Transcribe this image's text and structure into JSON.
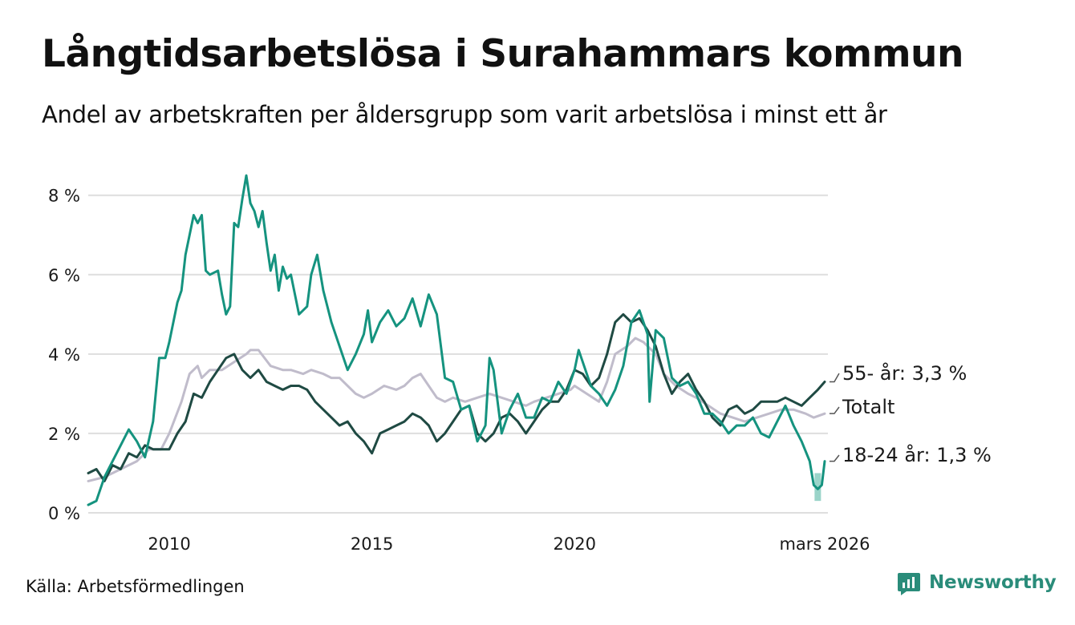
{
  "title": "Långtidsarbetslösa i Surahammars kommun",
  "subtitle": "Andel av arbetskraften per åldersgrupp som varit arbetslösa i minst ett år",
  "source": "Källa: Arbetsförmedlingen",
  "brand": "Newsworthy",
  "colors": {
    "youth": "#15937f",
    "older": "#1f4a43",
    "total": "#c0bccb",
    "grid": "#dedede",
    "uncertainty": "#9ad4c9",
    "brand": "#2a8c7a"
  },
  "chart_data": {
    "type": "line",
    "title": "Långtidsarbetslösa i Surahammars kommun",
    "xlim": [
      2008.0,
      2026.25
    ],
    "ylim": [
      0,
      8.6
    ],
    "x_ticks": [
      {
        "value": 2010.0,
        "label": "2010"
      },
      {
        "value": 2015.0,
        "label": "2015"
      },
      {
        "value": 2020.0,
        "label": "2020"
      },
      {
        "value": 2026.17,
        "label": "mars 2026"
      }
    ],
    "y_ticks": [
      {
        "value": 0,
        "label": "0 %"
      },
      {
        "value": 2,
        "label": "2 %"
      },
      {
        "value": 4,
        "label": "4 %"
      },
      {
        "value": 6,
        "label": "6 %"
      },
      {
        "value": 8,
        "label": "8 %"
      }
    ],
    "uncertainty_band": {
      "x": 2026.0,
      "low": 0.3,
      "high": 1.0
    },
    "series": [
      {
        "name": "Totalt",
        "label": "Totalt",
        "key": "total",
        "points": [
          [
            2008.0,
            0.8
          ],
          [
            2008.4,
            0.9
          ],
          [
            2008.8,
            1.1
          ],
          [
            2009.2,
            1.3
          ],
          [
            2009.5,
            1.6
          ],
          [
            2009.8,
            1.6
          ],
          [
            2010.0,
            2.0
          ],
          [
            2010.3,
            2.8
          ],
          [
            2010.5,
            3.5
          ],
          [
            2010.7,
            3.7
          ],
          [
            2010.8,
            3.4
          ],
          [
            2011.0,
            3.6
          ],
          [
            2011.3,
            3.6
          ],
          [
            2011.6,
            3.8
          ],
          [
            2011.9,
            4.0
          ],
          [
            2012.0,
            4.1
          ],
          [
            2012.2,
            4.1
          ],
          [
            2012.5,
            3.7
          ],
          [
            2012.8,
            3.6
          ],
          [
            2013.0,
            3.6
          ],
          [
            2013.3,
            3.5
          ],
          [
            2013.5,
            3.6
          ],
          [
            2013.8,
            3.5
          ],
          [
            2014.0,
            3.4
          ],
          [
            2014.2,
            3.4
          ],
          [
            2014.4,
            3.2
          ],
          [
            2014.6,
            3.0
          ],
          [
            2014.8,
            2.9
          ],
          [
            2015.0,
            3.0
          ],
          [
            2015.3,
            3.2
          ],
          [
            2015.6,
            3.1
          ],
          [
            2015.8,
            3.2
          ],
          [
            2016.0,
            3.4
          ],
          [
            2016.2,
            3.5
          ],
          [
            2016.4,
            3.2
          ],
          [
            2016.6,
            2.9
          ],
          [
            2016.8,
            2.8
          ],
          [
            2017.0,
            2.9
          ],
          [
            2017.3,
            2.8
          ],
          [
            2017.6,
            2.9
          ],
          [
            2017.9,
            3.0
          ],
          [
            2018.2,
            2.9
          ],
          [
            2018.5,
            2.8
          ],
          [
            2018.8,
            2.7
          ],
          [
            2019.0,
            2.8
          ],
          [
            2019.3,
            2.9
          ],
          [
            2019.6,
            3.0
          ],
          [
            2019.9,
            3.1
          ],
          [
            2020.0,
            3.2
          ],
          [
            2020.3,
            3.0
          ],
          [
            2020.6,
            2.8
          ],
          [
            2020.8,
            3.3
          ],
          [
            2021.0,
            4.0
          ],
          [
            2021.3,
            4.2
          ],
          [
            2021.5,
            4.4
          ],
          [
            2021.7,
            4.3
          ],
          [
            2022.0,
            4.0
          ],
          [
            2022.2,
            3.5
          ],
          [
            2022.5,
            3.2
          ],
          [
            2022.8,
            3.0
          ],
          [
            2023.0,
            2.9
          ],
          [
            2023.3,
            2.7
          ],
          [
            2023.6,
            2.5
          ],
          [
            2023.9,
            2.4
          ],
          [
            2024.2,
            2.3
          ],
          [
            2024.5,
            2.4
          ],
          [
            2024.8,
            2.5
          ],
          [
            2025.1,
            2.6
          ],
          [
            2025.4,
            2.6
          ],
          [
            2025.7,
            2.5
          ],
          [
            2025.9,
            2.4
          ],
          [
            2026.17,
            2.5
          ]
        ]
      },
      {
        "name": "55- år",
        "label": "55- år: 3,3 %",
        "key": "older",
        "points": [
          [
            2008.0,
            1.0
          ],
          [
            2008.2,
            1.1
          ],
          [
            2008.4,
            0.8
          ],
          [
            2008.6,
            1.2
          ],
          [
            2008.8,
            1.1
          ],
          [
            2009.0,
            1.5
          ],
          [
            2009.2,
            1.4
          ],
          [
            2009.4,
            1.7
          ],
          [
            2009.6,
            1.6
          ],
          [
            2009.8,
            1.6
          ],
          [
            2010.0,
            1.6
          ],
          [
            2010.2,
            2.0
          ],
          [
            2010.4,
            2.3
          ],
          [
            2010.6,
            3.0
          ],
          [
            2010.8,
            2.9
          ],
          [
            2011.0,
            3.3
          ],
          [
            2011.2,
            3.6
          ],
          [
            2011.4,
            3.9
          ],
          [
            2011.6,
            4.0
          ],
          [
            2011.8,
            3.6
          ],
          [
            2012.0,
            3.4
          ],
          [
            2012.2,
            3.6
          ],
          [
            2012.4,
            3.3
          ],
          [
            2012.6,
            3.2
          ],
          [
            2012.8,
            3.1
          ],
          [
            2013.0,
            3.2
          ],
          [
            2013.2,
            3.2
          ],
          [
            2013.4,
            3.1
          ],
          [
            2013.6,
            2.8
          ],
          [
            2013.8,
            2.6
          ],
          [
            2014.0,
            2.4
          ],
          [
            2014.2,
            2.2
          ],
          [
            2014.4,
            2.3
          ],
          [
            2014.6,
            2.0
          ],
          [
            2014.8,
            1.8
          ],
          [
            2015.0,
            1.5
          ],
          [
            2015.2,
            2.0
          ],
          [
            2015.4,
            2.1
          ],
          [
            2015.6,
            2.2
          ],
          [
            2015.8,
            2.3
          ],
          [
            2016.0,
            2.5
          ],
          [
            2016.2,
            2.4
          ],
          [
            2016.4,
            2.2
          ],
          [
            2016.6,
            1.8
          ],
          [
            2016.8,
            2.0
          ],
          [
            2017.0,
            2.3
          ],
          [
            2017.2,
            2.6
          ],
          [
            2017.4,
            2.7
          ],
          [
            2017.6,
            2.0
          ],
          [
            2017.8,
            1.8
          ],
          [
            2018.0,
            2.0
          ],
          [
            2018.2,
            2.4
          ],
          [
            2018.4,
            2.5
          ],
          [
            2018.6,
            2.3
          ],
          [
            2018.8,
            2.0
          ],
          [
            2019.0,
            2.3
          ],
          [
            2019.2,
            2.6
          ],
          [
            2019.4,
            2.8
          ],
          [
            2019.6,
            2.8
          ],
          [
            2019.8,
            3.1
          ],
          [
            2020.0,
            3.6
          ],
          [
            2020.2,
            3.5
          ],
          [
            2020.4,
            3.2
          ],
          [
            2020.6,
            3.4
          ],
          [
            2020.8,
            4.0
          ],
          [
            2021.0,
            4.8
          ],
          [
            2021.2,
            5.0
          ],
          [
            2021.4,
            4.8
          ],
          [
            2021.6,
            4.9
          ],
          [
            2021.8,
            4.6
          ],
          [
            2022.0,
            4.2
          ],
          [
            2022.2,
            3.5
          ],
          [
            2022.4,
            3.0
          ],
          [
            2022.6,
            3.3
          ],
          [
            2022.8,
            3.5
          ],
          [
            2023.0,
            3.1
          ],
          [
            2023.2,
            2.8
          ],
          [
            2023.4,
            2.4
          ],
          [
            2023.6,
            2.2
          ],
          [
            2023.8,
            2.6
          ],
          [
            2024.0,
            2.7
          ],
          [
            2024.2,
            2.5
          ],
          [
            2024.4,
            2.6
          ],
          [
            2024.6,
            2.8
          ],
          [
            2024.8,
            2.8
          ],
          [
            2025.0,
            2.8
          ],
          [
            2025.2,
            2.9
          ],
          [
            2025.4,
            2.8
          ],
          [
            2025.6,
            2.7
          ],
          [
            2025.8,
            2.9
          ],
          [
            2026.0,
            3.1
          ],
          [
            2026.17,
            3.3
          ]
        ]
      },
      {
        "name": "18-24 år",
        "label": "18-24 år: 1,3 %",
        "key": "youth",
        "points": [
          [
            2008.0,
            0.2
          ],
          [
            2008.2,
            0.3
          ],
          [
            2008.4,
            0.9
          ],
          [
            2008.6,
            1.3
          ],
          [
            2008.8,
            1.7
          ],
          [
            2009.0,
            2.1
          ],
          [
            2009.2,
            1.8
          ],
          [
            2009.4,
            1.4
          ],
          [
            2009.6,
            2.3
          ],
          [
            2009.75,
            3.9
          ],
          [
            2009.9,
            3.9
          ],
          [
            2010.0,
            4.3
          ],
          [
            2010.2,
            5.3
          ],
          [
            2010.3,
            5.6
          ],
          [
            2010.4,
            6.5
          ],
          [
            2010.5,
            7.0
          ],
          [
            2010.6,
            7.5
          ],
          [
            2010.7,
            7.3
          ],
          [
            2010.8,
            7.5
          ],
          [
            2010.9,
            6.1
          ],
          [
            2011.0,
            6.0
          ],
          [
            2011.2,
            6.1
          ],
          [
            2011.3,
            5.5
          ],
          [
            2011.4,
            5.0
          ],
          [
            2011.5,
            5.2
          ],
          [
            2011.6,
            7.3
          ],
          [
            2011.7,
            7.2
          ],
          [
            2011.8,
            7.9
          ],
          [
            2011.9,
            8.5
          ],
          [
            2012.0,
            7.8
          ],
          [
            2012.1,
            7.6
          ],
          [
            2012.2,
            7.2
          ],
          [
            2012.3,
            7.6
          ],
          [
            2012.4,
            6.8
          ],
          [
            2012.5,
            6.1
          ],
          [
            2012.6,
            6.5
          ],
          [
            2012.7,
            5.6
          ],
          [
            2012.8,
            6.2
          ],
          [
            2012.9,
            5.9
          ],
          [
            2013.0,
            6.0
          ],
          [
            2013.2,
            5.0
          ],
          [
            2013.4,
            5.2
          ],
          [
            2013.5,
            6.0
          ],
          [
            2013.65,
            6.5
          ],
          [
            2013.8,
            5.6
          ],
          [
            2014.0,
            4.8
          ],
          [
            2014.2,
            4.2
          ],
          [
            2014.4,
            3.6
          ],
          [
            2014.6,
            4.0
          ],
          [
            2014.8,
            4.5
          ],
          [
            2014.9,
            5.1
          ],
          [
            2015.0,
            4.3
          ],
          [
            2015.2,
            4.8
          ],
          [
            2015.4,
            5.1
          ],
          [
            2015.6,
            4.7
          ],
          [
            2015.8,
            4.9
          ],
          [
            2016.0,
            5.4
          ],
          [
            2016.2,
            4.7
          ],
          [
            2016.4,
            5.5
          ],
          [
            2016.6,
            5.0
          ],
          [
            2016.8,
            3.4
          ],
          [
            2017.0,
            3.3
          ],
          [
            2017.2,
            2.6
          ],
          [
            2017.4,
            2.7
          ],
          [
            2017.6,
            1.8
          ],
          [
            2017.8,
            2.2
          ],
          [
            2017.9,
            3.9
          ],
          [
            2018.0,
            3.6
          ],
          [
            2018.2,
            2.0
          ],
          [
            2018.4,
            2.6
          ],
          [
            2018.6,
            3.0
          ],
          [
            2018.8,
            2.4
          ],
          [
            2019.0,
            2.4
          ],
          [
            2019.2,
            2.9
          ],
          [
            2019.4,
            2.8
          ],
          [
            2019.6,
            3.3
          ],
          [
            2019.8,
            3.0
          ],
          [
            2020.0,
            3.6
          ],
          [
            2020.1,
            4.1
          ],
          [
            2020.2,
            3.8
          ],
          [
            2020.4,
            3.2
          ],
          [
            2020.6,
            3.0
          ],
          [
            2020.8,
            2.7
          ],
          [
            2021.0,
            3.1
          ],
          [
            2021.2,
            3.7
          ],
          [
            2021.4,
            4.8
          ],
          [
            2021.6,
            5.1
          ],
          [
            2021.8,
            4.5
          ],
          [
            2021.85,
            2.8
          ],
          [
            2022.0,
            4.6
          ],
          [
            2022.2,
            4.4
          ],
          [
            2022.4,
            3.4
          ],
          [
            2022.6,
            3.2
          ],
          [
            2022.8,
            3.3
          ],
          [
            2023.0,
            3.0
          ],
          [
            2023.2,
            2.5
          ],
          [
            2023.4,
            2.5
          ],
          [
            2023.6,
            2.3
          ],
          [
            2023.8,
            2.0
          ],
          [
            2024.0,
            2.2
          ],
          [
            2024.2,
            2.2
          ],
          [
            2024.4,
            2.4
          ],
          [
            2024.6,
            2.0
          ],
          [
            2024.8,
            1.9
          ],
          [
            2025.0,
            2.3
          ],
          [
            2025.2,
            2.7
          ],
          [
            2025.4,
            2.2
          ],
          [
            2025.6,
            1.8
          ],
          [
            2025.8,
            1.3
          ],
          [
            2025.9,
            0.7
          ],
          [
            2026.0,
            0.6
          ],
          [
            2026.1,
            0.7
          ],
          [
            2026.17,
            1.3
          ]
        ]
      }
    ]
  }
}
